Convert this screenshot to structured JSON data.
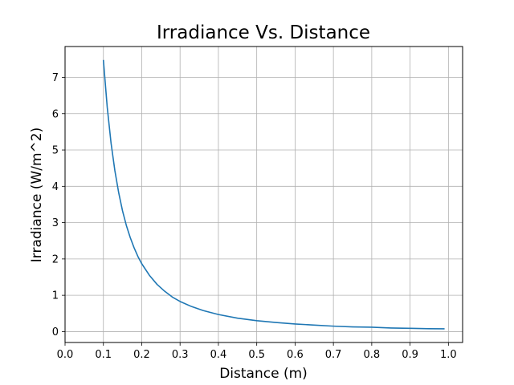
{
  "chart_data": {
    "type": "line",
    "title": "Irradiance Vs. Distance",
    "xlabel": "Distance (m)",
    "ylabel": "Irradiance (W/m^2)",
    "xlim": [
      0.0,
      1.037
    ],
    "ylim": [
      -0.3,
      7.85
    ],
    "x_ticks": [
      0.0,
      0.1,
      0.2,
      0.3,
      0.4,
      0.5,
      0.6,
      0.7,
      0.8,
      0.9,
      1.0
    ],
    "x_tick_labels": [
      "0.0",
      "0.1",
      "0.2",
      "0.3",
      "0.4",
      "0.5",
      "0.6",
      "0.7",
      "0.8",
      "0.9",
      "1.0"
    ],
    "y_ticks": [
      0,
      1,
      2,
      3,
      4,
      5,
      6,
      7
    ],
    "y_tick_labels": [
      "0",
      "1",
      "2",
      "3",
      "4",
      "5",
      "6",
      "7"
    ],
    "grid": true,
    "series": [
      {
        "color": "#1f77b4",
        "x": [
          0.1,
          0.11,
          0.12,
          0.13,
          0.14,
          0.15,
          0.16,
          0.17,
          0.18,
          0.19,
          0.2,
          0.22,
          0.24,
          0.26,
          0.28,
          0.3,
          0.33,
          0.36,
          0.4,
          0.45,
          0.5,
          0.55,
          0.6,
          0.65,
          0.7,
          0.75,
          0.8,
          0.85,
          0.9,
          0.95,
          0.99
        ],
        "y": [
          7.48,
          6.18,
          5.19,
          4.43,
          3.82,
          3.32,
          2.92,
          2.59,
          2.31,
          2.07,
          1.87,
          1.55,
          1.3,
          1.11,
          0.95,
          0.83,
          0.69,
          0.58,
          0.47,
          0.37,
          0.3,
          0.25,
          0.21,
          0.18,
          0.15,
          0.13,
          0.12,
          0.1,
          0.09,
          0.08,
          0.076
        ]
      }
    ]
  }
}
